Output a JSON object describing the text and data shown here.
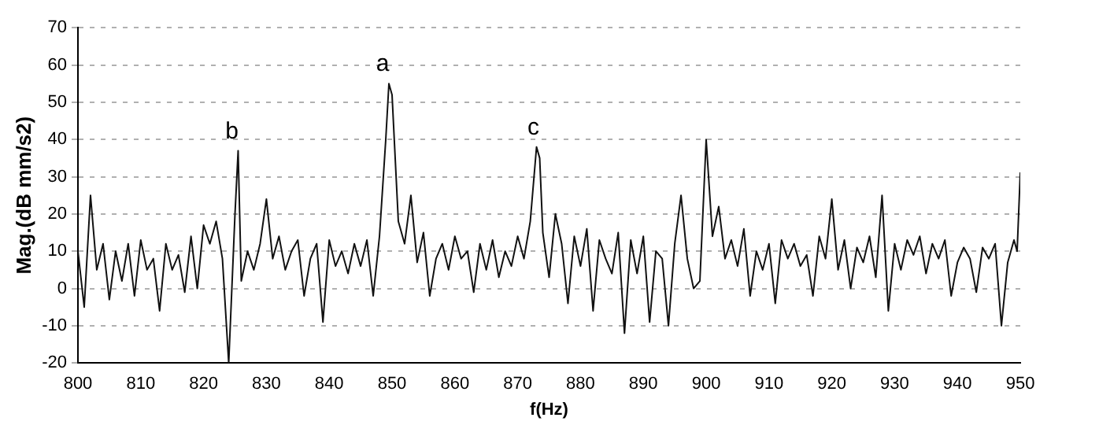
{
  "chart_data": {
    "type": "line",
    "xlabel": "f(Hz)",
    "ylabel": "Mag.(dB mm/s2)",
    "x": [
      800,
      801,
      802,
      803,
      804,
      805,
      806,
      807,
      808,
      809,
      810,
      811,
      812,
      813,
      814,
      815,
      816,
      817,
      818,
      819,
      820,
      821,
      822,
      823,
      824,
      825,
      825.5,
      826,
      827,
      828,
      829,
      830,
      831,
      832,
      833,
      834,
      835,
      836,
      837,
      838,
      839,
      840,
      841,
      842,
      843,
      844,
      845,
      846,
      847,
      848,
      849,
      849.5,
      850,
      851,
      852,
      853,
      854,
      855,
      856,
      857,
      858,
      859,
      860,
      861,
      862,
      863,
      864,
      865,
      866,
      867,
      868,
      869,
      870,
      871,
      872,
      873,
      873.5,
      874,
      875,
      876,
      877,
      878,
      879,
      880,
      881,
      882,
      883,
      884,
      885,
      886,
      887,
      888,
      889,
      890,
      891,
      892,
      893,
      894,
      895,
      896,
      897,
      898,
      899,
      900,
      901,
      902,
      903,
      904,
      905,
      906,
      907,
      908,
      909,
      910,
      911,
      912,
      913,
      914,
      915,
      916,
      917,
      918,
      919,
      920,
      921,
      922,
      923,
      924,
      925,
      926,
      927,
      928,
      929,
      930,
      931,
      932,
      933,
      934,
      935,
      936,
      937,
      938,
      939,
      940,
      941,
      942,
      943,
      944,
      945,
      946,
      947,
      948,
      949,
      949.5,
      950
    ],
    "series": [
      {
        "color": "#111111",
        "values": [
          10,
          -5,
          25,
          5,
          12,
          -3,
          10,
          2,
          12,
          -2,
          13,
          5,
          8,
          -6,
          12,
          5,
          9,
          -1,
          14,
          0,
          17,
          12,
          18,
          8,
          -20,
          20,
          37,
          2,
          10,
          5,
          12,
          24,
          8,
          14,
          5,
          10,
          13,
          -2,
          8,
          12,
          -9,
          13,
          6,
          10,
          4,
          12,
          6,
          13,
          -2,
          14,
          40,
          55,
          52,
          18,
          12,
          25,
          7,
          15,
          -2,
          8,
          12,
          5,
          14,
          8,
          10,
          -1,
          12,
          5,
          13,
          3,
          10,
          6,
          14,
          8,
          18,
          38,
          35,
          15,
          3,
          20,
          12,
          -4,
          14,
          6,
          16,
          -6,
          13,
          8,
          4,
          15,
          -12,
          13,
          4,
          14,
          -9,
          10,
          8,
          -10,
          12,
          25,
          8,
          0,
          2,
          40,
          14,
          22,
          8,
          13,
          6,
          16,
          -2,
          10,
          5,
          12,
          -4,
          13,
          8,
          12,
          6,
          9,
          -2,
          14,
          8,
          24,
          5,
          13,
          0,
          11,
          7,
          14,
          3,
          25,
          -6,
          12,
          5,
          13,
          9,
          14,
          4,
          12,
          8,
          13,
          -2,
          7,
          11,
          8,
          -1,
          11,
          8,
          12,
          -10,
          7,
          13,
          10,
          31
        ]
      }
    ],
    "xlim": [
      800,
      950
    ],
    "xticks": [
      800,
      810,
      820,
      830,
      840,
      850,
      860,
      870,
      880,
      890,
      900,
      910,
      920,
      930,
      940,
      950
    ],
    "ylim": [
      -20,
      70
    ],
    "yticks": [
      -20,
      -10,
      0,
      10,
      20,
      30,
      40,
      50,
      60,
      70
    ],
    "grid": "y",
    "legend": false,
    "marker": "none",
    "line_style": "solid",
    "annotations": [
      {
        "text": "a",
        "x": 849.5,
        "y": 55
      },
      {
        "text": "b",
        "x": 825.5,
        "y": 37
      },
      {
        "text": "c",
        "x": 873.5,
        "y": 38
      }
    ]
  }
}
